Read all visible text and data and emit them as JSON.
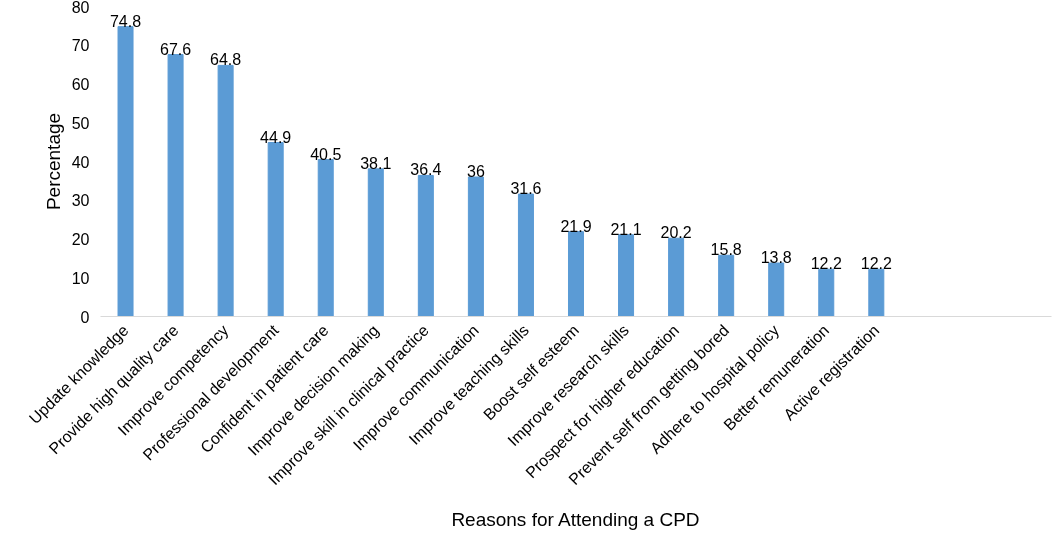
{
  "chart_data": {
    "type": "bar",
    "xlabel": "Reasons for Attending a CPD",
    "ylabel": "Percentage",
    "categories": [
      "Update knowledge",
      "Provide high quality care",
      "Improve competency",
      "Professional development",
      "Confident in patient care",
      "Improve decision making",
      "Improve skill in clinical practice",
      "Improve communication",
      "Improve teaching skills",
      "Boost self esteem",
      "Improve research skills",
      "Prospect for higher education",
      "Prevent self from getting bored",
      "Adhere to hospital policy",
      "Better remuneration",
      "Active registration",
      null,
      null,
      null
    ],
    "values": [
      74.8,
      67.6,
      64.8,
      44.9,
      40.5,
      38.1,
      36.4,
      36,
      31.6,
      21.9,
      21.1,
      20.2,
      15.8,
      13.8,
      12.2,
      12.2,
      null,
      null,
      null
    ],
    "color": "#5b9bd5",
    "ylim": [
      0,
      80
    ],
    "yticks": [
      0,
      10,
      20,
      30,
      40,
      50,
      60,
      70,
      80
    ],
    "grid": false,
    "data_labels": true
  }
}
